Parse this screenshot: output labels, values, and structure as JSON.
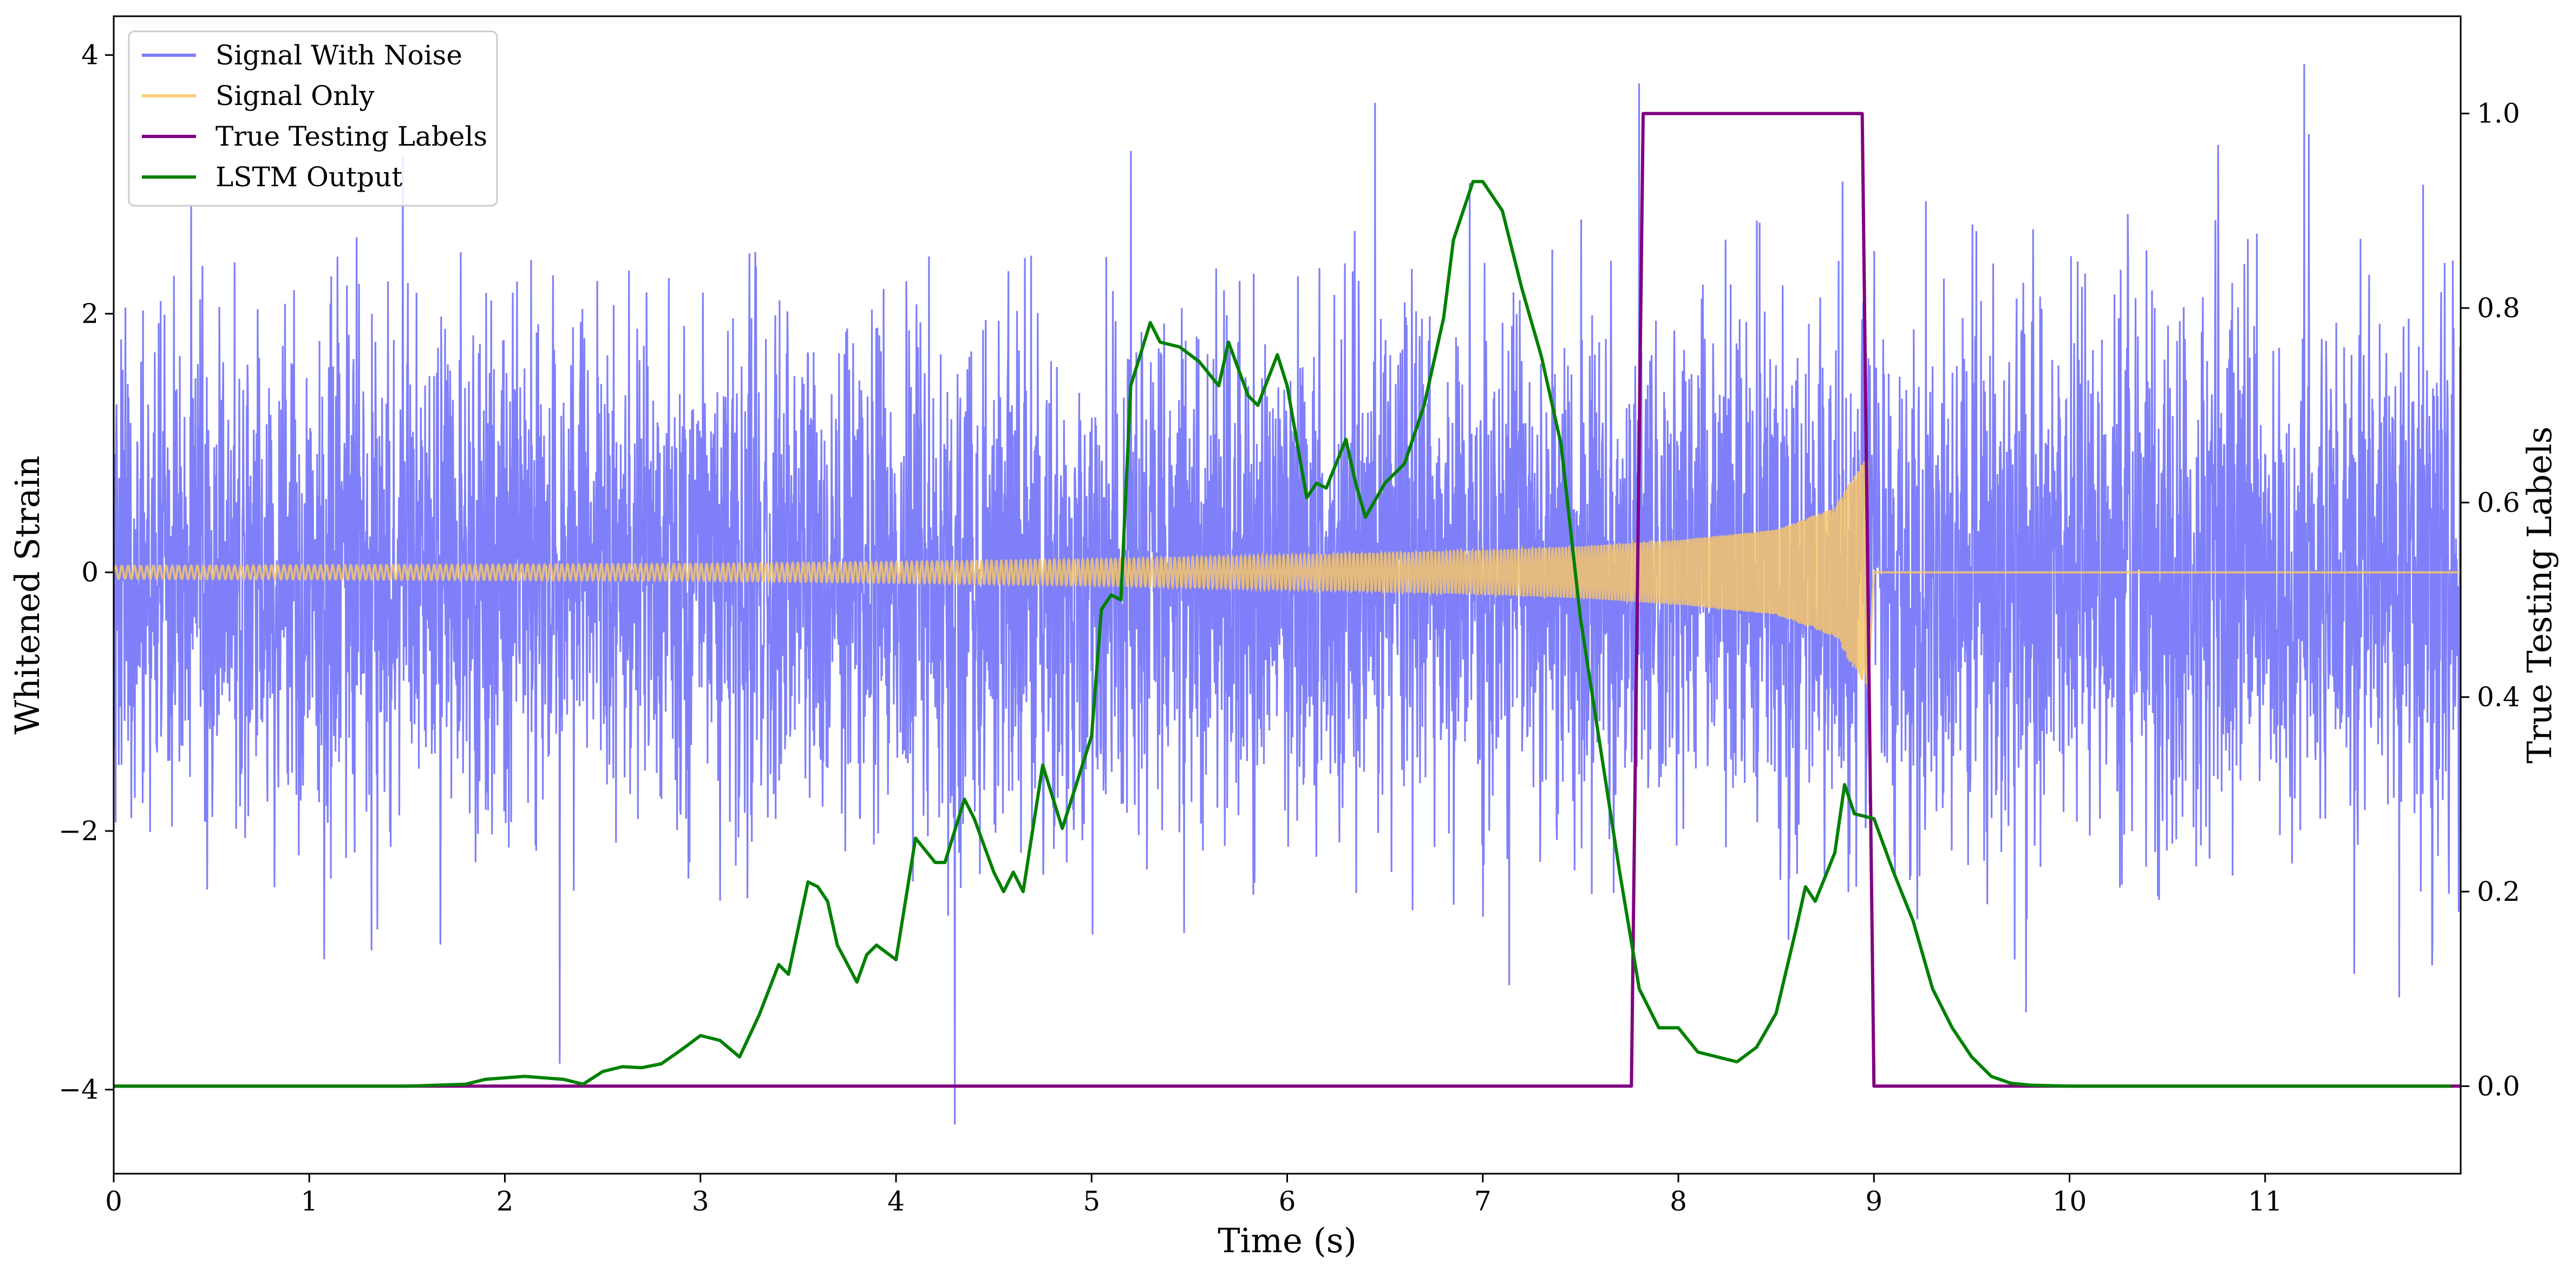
{
  "chart_data": {
    "type": "line",
    "title": "",
    "xlabel": "Time (s)",
    "ylabel_left": "Whitened Strain",
    "ylabel_right": "True Testing Labels",
    "xlim": [
      0,
      12
    ],
    "ylim_left": [
      -4.65,
      4.3
    ],
    "ylim_right": [
      -0.09,
      1.1
    ],
    "x_ticks": [
      0,
      1,
      2,
      3,
      4,
      5,
      6,
      7,
      8,
      9,
      10,
      11
    ],
    "y_left_ticks": [
      -4,
      -2,
      0,
      2,
      4
    ],
    "y_left_tick_labels": [
      "−4",
      "−2",
      "0",
      "2",
      "4"
    ],
    "y_right_ticks": [
      0.0,
      0.2,
      0.4,
      0.6,
      0.8,
      1.0
    ],
    "y_right_tick_labels": [
      "0.0",
      "0.2",
      "0.4",
      "0.6",
      "0.8",
      "1.0"
    ],
    "grid": false,
    "legend_position": "top-left",
    "series": [
      {
        "name": "Signal With Noise",
        "axis": "left",
        "color": "#7f7ffa",
        "style": "noise",
        "approx_std": 1.0,
        "approx_range": [
          -4.3,
          3.9
        ],
        "notable_spikes": [
          [
            4.3,
            -4.27
          ],
          [
            7.8,
            3.78
          ],
          [
            11.2,
            3.93
          ],
          [
            6.45,
            3.63
          ],
          [
            2.28,
            -3.8
          ]
        ]
      },
      {
        "name": "Signal Only",
        "axis": "left",
        "color": "#f5c56b",
        "style": "chirp",
        "start": 0,
        "merger": 8.97,
        "envelope": [
          [
            0.0,
            0.05
          ],
          [
            1.0,
            0.055
          ],
          [
            2.0,
            0.06
          ],
          [
            3.0,
            0.065
          ],
          [
            4.0,
            0.08
          ],
          [
            5.0,
            0.1
          ],
          [
            6.0,
            0.13
          ],
          [
            7.0,
            0.17
          ],
          [
            7.5,
            0.2
          ],
          [
            8.0,
            0.25
          ],
          [
            8.5,
            0.33
          ],
          [
            8.8,
            0.5
          ],
          [
            8.9,
            0.75
          ],
          [
            8.97,
            0.9
          ]
        ]
      },
      {
        "name": "True Testing Labels",
        "axis": "right",
        "color": "#800080",
        "points": [
          [
            0.0,
            0.0
          ],
          [
            7.76,
            0.0
          ],
          [
            7.82,
            1.0
          ],
          [
            8.94,
            1.0
          ],
          [
            9.0,
            0.0
          ],
          [
            12.0,
            0.0
          ]
        ]
      },
      {
        "name": "LSTM Output",
        "axis": "right",
        "color": "#008000",
        "points": [
          [
            0.0,
            0.0
          ],
          [
            1.0,
            0.0
          ],
          [
            1.5,
            0.0
          ],
          [
            1.8,
            0.002
          ],
          [
            1.9,
            0.007
          ],
          [
            2.1,
            0.01
          ],
          [
            2.3,
            0.007
          ],
          [
            2.4,
            0.002
          ],
          [
            2.5,
            0.015
          ],
          [
            2.6,
            0.02
          ],
          [
            2.7,
            0.019
          ],
          [
            2.8,
            0.023
          ],
          [
            2.9,
            0.037
          ],
          [
            3.0,
            0.052
          ],
          [
            3.1,
            0.047
          ],
          [
            3.2,
            0.03
          ],
          [
            3.3,
            0.073
          ],
          [
            3.4,
            0.125
          ],
          [
            3.45,
            0.115
          ],
          [
            3.55,
            0.21
          ],
          [
            3.6,
            0.205
          ],
          [
            3.65,
            0.19
          ],
          [
            3.7,
            0.145
          ],
          [
            3.8,
            0.107
          ],
          [
            3.85,
            0.135
          ],
          [
            3.9,
            0.145
          ],
          [
            4.0,
            0.13
          ],
          [
            4.1,
            0.255
          ],
          [
            4.2,
            0.23
          ],
          [
            4.25,
            0.23
          ],
          [
            4.35,
            0.295
          ],
          [
            4.4,
            0.275
          ],
          [
            4.5,
            0.22
          ],
          [
            4.55,
            0.2
          ],
          [
            4.6,
            0.22
          ],
          [
            4.65,
            0.2
          ],
          [
            4.75,
            0.33
          ],
          [
            4.85,
            0.265
          ],
          [
            5.0,
            0.36
          ],
          [
            5.05,
            0.49
          ],
          [
            5.1,
            0.505
          ],
          [
            5.15,
            0.5
          ],
          [
            5.2,
            0.72
          ],
          [
            5.3,
            0.785
          ],
          [
            5.35,
            0.765
          ],
          [
            5.45,
            0.76
          ],
          [
            5.55,
            0.745
          ],
          [
            5.65,
            0.72
          ],
          [
            5.7,
            0.765
          ],
          [
            5.8,
            0.71
          ],
          [
            5.85,
            0.7
          ],
          [
            5.95,
            0.752
          ],
          [
            6.0,
            0.72
          ],
          [
            6.1,
            0.605
          ],
          [
            6.15,
            0.62
          ],
          [
            6.2,
            0.615
          ],
          [
            6.3,
            0.665
          ],
          [
            6.35,
            0.62
          ],
          [
            6.4,
            0.585
          ],
          [
            6.5,
            0.62
          ],
          [
            6.6,
            0.64
          ],
          [
            6.7,
            0.7
          ],
          [
            6.8,
            0.79
          ],
          [
            6.85,
            0.87
          ],
          [
            6.95,
            0.93
          ],
          [
            7.0,
            0.93
          ],
          [
            7.1,
            0.9
          ],
          [
            7.2,
            0.82
          ],
          [
            7.3,
            0.75
          ],
          [
            7.4,
            0.66
          ],
          [
            7.5,
            0.48
          ],
          [
            7.6,
            0.35
          ],
          [
            7.7,
            0.22
          ],
          [
            7.8,
            0.1
          ],
          [
            7.9,
            0.06
          ],
          [
            8.0,
            0.06
          ],
          [
            8.1,
            0.035
          ],
          [
            8.2,
            0.03
          ],
          [
            8.3,
            0.025
          ],
          [
            8.4,
            0.04
          ],
          [
            8.5,
            0.075
          ],
          [
            8.6,
            0.16
          ],
          [
            8.65,
            0.205
          ],
          [
            8.7,
            0.19
          ],
          [
            8.8,
            0.24
          ],
          [
            8.85,
            0.31
          ],
          [
            8.9,
            0.28
          ],
          [
            9.0,
            0.275
          ],
          [
            9.1,
            0.22
          ],
          [
            9.2,
            0.17
          ],
          [
            9.3,
            0.1
          ],
          [
            9.4,
            0.06
          ],
          [
            9.5,
            0.03
          ],
          [
            9.6,
            0.01
          ],
          [
            9.7,
            0.003
          ],
          [
            9.8,
            0.001
          ],
          [
            10.0,
            0.0
          ],
          [
            11.0,
            0.0
          ],
          [
            11.95,
            0.0
          ]
        ]
      }
    ]
  }
}
